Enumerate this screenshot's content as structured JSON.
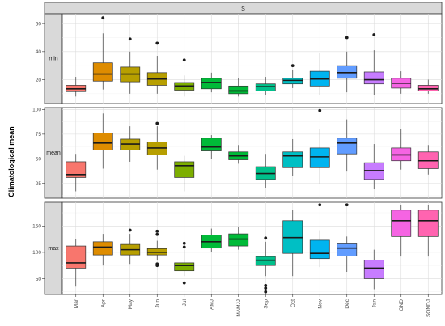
{
  "chart_data": {
    "type": "boxplot",
    "facet_top_label": "S",
    "ylabel": "Climatological mean",
    "xlabel": "",
    "categories": [
      "Mar",
      "Apr",
      "May",
      "Jun",
      "Jul",
      "AMJ",
      "MAMJJ",
      "Sep",
      "Oct",
      "Nov",
      "Dec",
      "Jan",
      "OND",
      "SONDJ"
    ],
    "colors": [
      "#F8766D",
      "#DE8C00",
      "#B79F00",
      "#B79F00",
      "#7CAE00",
      "#00BA38",
      "#00BA38",
      "#00C08B",
      "#00BFC4",
      "#00B4F0",
      "#619CFF",
      "#C77CFF",
      "#F564E3",
      "#FF64B0"
    ],
    "grid": true,
    "panels": [
      {
        "label": "min",
        "ylim": [
          3,
          67
        ],
        "yticks": [
          20,
          40,
          60
        ],
        "boxes": [
          {
            "min": 8,
            "q1": 11.5,
            "median": 13.5,
            "q3": 16,
            "max": 22,
            "outliers": []
          },
          {
            "min": 13,
            "q1": 19,
            "median": 24,
            "q3": 32,
            "max": 53,
            "outliers": [
              64
            ]
          },
          {
            "min": 10,
            "q1": 18.5,
            "median": 24,
            "q3": 29,
            "max": 40,
            "outliers": [
              49
            ]
          },
          {
            "min": 10,
            "q1": 16,
            "median": 20.5,
            "q3": 25,
            "max": 37,
            "outliers": [
              46
            ]
          },
          {
            "min": 8,
            "q1": 12.5,
            "median": 15.5,
            "q3": 18,
            "max": 23,
            "outliers": [
              34
            ]
          },
          {
            "min": 11,
            "q1": 13.5,
            "median": 18,
            "q3": 21,
            "max": 25,
            "outliers": []
          },
          {
            "min": 8,
            "q1": 10,
            "median": 12,
            "q3": 15.5,
            "max": 21,
            "outliers": []
          },
          {
            "min": 9,
            "q1": 12,
            "median": 15,
            "q3": 17,
            "max": 22,
            "outliers": []
          },
          {
            "min": 14,
            "q1": 17,
            "median": 19.5,
            "q3": 21,
            "max": 27,
            "outliers": [
              30
            ]
          },
          {
            "min": 9,
            "q1": 15.5,
            "median": 20.5,
            "q3": 26,
            "max": 39,
            "outliers": []
          },
          {
            "min": 11,
            "q1": 21,
            "median": 25,
            "q3": 30,
            "max": 40,
            "outliers": [
              50
            ]
          },
          {
            "min": 9,
            "q1": 17,
            "median": 20,
            "q3": 25.5,
            "max": 41,
            "outliers": [
              52
            ]
          },
          {
            "min": 10,
            "q1": 14,
            "median": 17.5,
            "q3": 21,
            "max": 26,
            "outliers": []
          },
          {
            "min": 10,
            "q1": 12,
            "median": 13.5,
            "q3": 16,
            "max": 20,
            "outliers": []
          }
        ]
      },
      {
        "label": "mean",
        "ylim": [
          10,
          102
        ],
        "yticks": [
          25,
          50,
          75,
          100
        ],
        "boxes": [
          {
            "min": 17,
            "q1": 31,
            "median": 34,
            "q3": 47,
            "max": 55,
            "outliers": []
          },
          {
            "min": 40,
            "q1": 59,
            "median": 66,
            "q3": 76,
            "max": 96,
            "outliers": []
          },
          {
            "min": 47,
            "q1": 59,
            "median": 65,
            "q3": 70,
            "max": 83,
            "outliers": []
          },
          {
            "min": 39,
            "q1": 54,
            "median": 61,
            "q3": 67,
            "max": 83,
            "outliers": [
              86
            ]
          },
          {
            "min": 17,
            "q1": 31,
            "median": 43,
            "q3": 47,
            "max": 53,
            "outliers": []
          },
          {
            "min": 50,
            "q1": 58,
            "median": 62,
            "q3": 71,
            "max": 74,
            "outliers": []
          },
          {
            "min": 45,
            "q1": 49,
            "median": 53,
            "q3": 57,
            "max": 64,
            "outliers": []
          },
          {
            "min": 20,
            "q1": 29,
            "median": 35,
            "q3": 42,
            "max": 55,
            "outliers": []
          },
          {
            "min": 33,
            "q1": 41,
            "median": 53,
            "q3": 57,
            "max": 70,
            "outliers": []
          },
          {
            "min": 25,
            "q1": 41,
            "median": 52,
            "q3": 61,
            "max": 80,
            "outliers": [
              99
            ]
          },
          {
            "min": 37,
            "q1": 55,
            "median": 66,
            "q3": 71,
            "max": 90,
            "outliers": []
          },
          {
            "min": 19,
            "q1": 29,
            "median": 38,
            "q3": 46,
            "max": 65,
            "outliers": []
          },
          {
            "min": 39,
            "q1": 48,
            "median": 54,
            "q3": 61,
            "max": 80,
            "outliers": []
          },
          {
            "min": 34,
            "q1": 40,
            "median": 48,
            "q3": 57,
            "max": 64,
            "outliers": []
          }
        ]
      },
      {
        "label": "max",
        "ylim": [
          20,
          195
        ],
        "yticks": [
          50,
          100,
          150
        ],
        "boxes": [
          {
            "min": 35,
            "q1": 70,
            "median": 80,
            "q3": 112,
            "max": 125,
            "outliers": []
          },
          {
            "min": 75,
            "q1": 95,
            "median": 110,
            "q3": 120,
            "max": 135,
            "outliers": []
          },
          {
            "min": 78,
            "q1": 95,
            "median": 105,
            "q3": 115,
            "max": 135,
            "outliers": [
              142
            ]
          },
          {
            "min": 85,
            "q1": 95,
            "median": 100,
            "q3": 107,
            "max": 122,
            "outliers": [
              75,
              78,
              134,
              140
            ]
          },
          {
            "min": 55,
            "q1": 65,
            "median": 75,
            "q3": 80,
            "max": 105,
            "outliers": [
              42,
              110,
              117
            ]
          },
          {
            "min": 100,
            "q1": 108,
            "median": 120,
            "q3": 133,
            "max": 145,
            "outliers": []
          },
          {
            "min": 105,
            "q1": 112,
            "median": 125,
            "q3": 135,
            "max": 148,
            "outliers": []
          },
          {
            "min": 55,
            "q1": 75,
            "median": 85,
            "q3": 92,
            "max": 120,
            "outliers": [
              25,
              32,
              37,
              127
            ]
          },
          {
            "min": 55,
            "q1": 98,
            "median": 128,
            "q3": 160,
            "max": 180,
            "outliers": []
          },
          {
            "min": 72,
            "q1": 88,
            "median": 98,
            "q3": 123,
            "max": 142,
            "outliers": [
              190
            ]
          },
          {
            "min": 63,
            "q1": 93,
            "median": 108,
            "q3": 116,
            "max": 130,
            "outliers": [
              190
            ]
          },
          {
            "min": 30,
            "q1": 50,
            "median": 70,
            "q3": 85,
            "max": 105,
            "outliers": []
          },
          {
            "min": 92,
            "q1": 130,
            "median": 160,
            "q3": 180,
            "max": 190,
            "outliers": []
          },
          {
            "min": 92,
            "q1": 130,
            "median": 160,
            "q3": 180,
            "max": 190,
            "outliers": []
          }
        ]
      }
    ]
  }
}
